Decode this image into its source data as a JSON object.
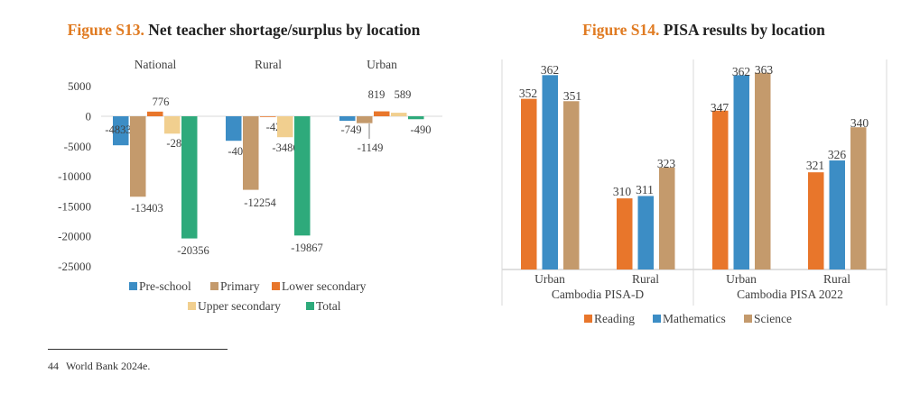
{
  "colors": {
    "preschool": "#3c8dc5",
    "primary": "#c49a6c",
    "lower_secondary": "#e8762b",
    "upper_secondary": "#f1cf8f",
    "total": "#2eaa7b",
    "reading": "#e8762b",
    "mathematics": "#3c8dc5",
    "science": "#c49a6c",
    "title_accent": "#e07b22"
  },
  "figure_s13": {
    "number": "Figure S13.",
    "title": "Net teacher shortage/surplus by location"
  },
  "figure_s14": {
    "number": "Figure S14.",
    "title": "PISA results by location"
  },
  "footnote": {
    "number": "44",
    "text": "World Bank 2024e."
  },
  "chart_data": [
    {
      "type": "bar",
      "title": "Net teacher shortage/surplus by location",
      "categories": [
        "National",
        "Rural",
        "Urban"
      ],
      "series": [
        {
          "name": "Pre-school",
          "values": [
            -4833,
            -4084,
            -749
          ]
        },
        {
          "name": "Primary",
          "values": [
            -13403,
            -12254,
            -1149
          ]
        },
        {
          "name": "Lower secondary",
          "values": [
            776,
            -42,
            819
          ]
        },
        {
          "name": "Upper secondary",
          "values": [
            -2896,
            -3486,
            589
          ]
        },
        {
          "name": "Total",
          "values": [
            -20356,
            -19867,
            -490
          ]
        }
      ],
      "y_ticks": [
        "5000",
        "0",
        "-5000",
        "-10000",
        "-15000",
        "-20000",
        "-25000"
      ],
      "ylim": [
        -25000,
        5000
      ],
      "legend_position": "bottom",
      "grid": false
    },
    {
      "type": "bar",
      "title": "PISA results by location",
      "groups": [
        {
          "label": "Cambodia PISA-D",
          "categories": [
            "Urban",
            "Rural"
          ]
        },
        {
          "label": "Cambodia PISA 2022",
          "categories": [
            "Urban",
            "Rural"
          ]
        }
      ],
      "series": [
        {
          "name": "Reading",
          "values": [
            352,
            310,
            347,
            321
          ]
        },
        {
          "name": "Mathematics",
          "values": [
            362,
            311,
            362,
            326
          ]
        },
        {
          "name": "Science",
          "values": [
            351,
            323,
            363,
            340
          ]
        }
      ],
      "legend_position": "bottom",
      "grid": false
    }
  ]
}
